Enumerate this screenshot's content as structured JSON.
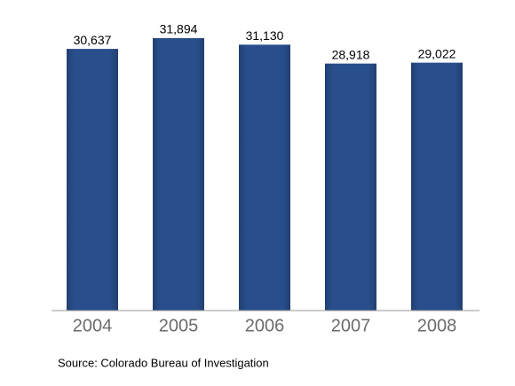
{
  "chart_data": {
    "type": "bar",
    "categories": [
      "2004",
      "2005",
      "2006",
      "2007",
      "2008"
    ],
    "values": [
      30637,
      31894,
      31130,
      28918,
      29022
    ],
    "value_labels": [
      "30,637",
      "31,894",
      "31,130",
      "28,918",
      "29,022"
    ],
    "color": "#284e8b",
    "source": "Source: Colorado Bureau of Investigation"
  }
}
